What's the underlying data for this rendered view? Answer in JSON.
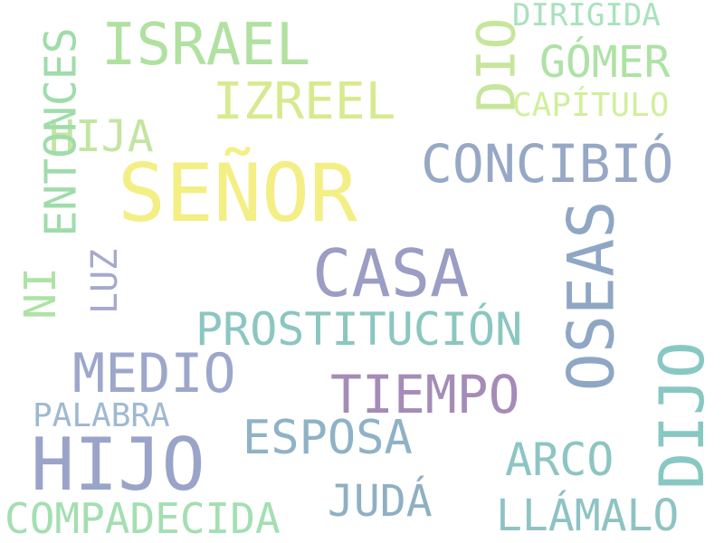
{
  "words": {
    "senor": {
      "text": "SEÑOR",
      "color": "#f3ef85"
    },
    "casa": {
      "text": "CASA",
      "color": "#9c9dc4"
    },
    "hijo": {
      "text": "HIJO",
      "color": "#9aa4c9"
    },
    "israel": {
      "text": "ISRAEL",
      "color": "#b1e1a0"
    },
    "concibio": {
      "text": "CONCIBIÓ",
      "color": "#97a8c6"
    },
    "oseas": {
      "text": "OSEAS",
      "color": "#8fa7c4"
    },
    "dijo": {
      "text": "DIJO",
      "color": "#88c8c2"
    },
    "tiempo": {
      "text": "TIEMPO",
      "color": "#a58cb7"
    },
    "medio": {
      "text": "MEDIO",
      "color": "#9ca7cb"
    },
    "izreel": {
      "text": "IZREEL",
      "color": "#d7ea8f"
    },
    "prostitucion": {
      "text": "PROSTITUCIÓN",
      "color": "#8cc6c0"
    },
    "esposa": {
      "text": "ESPOSA",
      "color": "#8fb2c6"
    },
    "compadecida": {
      "text": "COMPADECIDA",
      "color": "#a3dfb1"
    },
    "llamalo": {
      "text": "LLÁMALO",
      "color": "#8fc3c3"
    },
    "juda": {
      "text": "JUDÁ",
      "color": "#8fb0c2"
    },
    "arco": {
      "text": "ARCO",
      "color": "#8ec5c3"
    },
    "dio": {
      "text": "DIO",
      "color": "#c6e69c"
    },
    "gomer": {
      "text": "GÓMER",
      "color": "#aee2a6"
    },
    "hija": {
      "text": "HIJA",
      "color": "#c4e5a1"
    },
    "entonces": {
      "text": "ENTONCES",
      "color": "#9fdcaa"
    },
    "ni": {
      "text": "NI",
      "color": "#aee2a6"
    },
    "luz": {
      "text": "LUZ",
      "color": "#a7a9cc"
    },
    "palabra": {
      "text": "PALABRA",
      "color": "#9fb9d1"
    },
    "dirigida": {
      "text": "DIRIGIDA",
      "color": "#a8e2bd"
    },
    "capitulo": {
      "text": "CAPÍTULO",
      "color": "#d2ef9d"
    }
  }
}
